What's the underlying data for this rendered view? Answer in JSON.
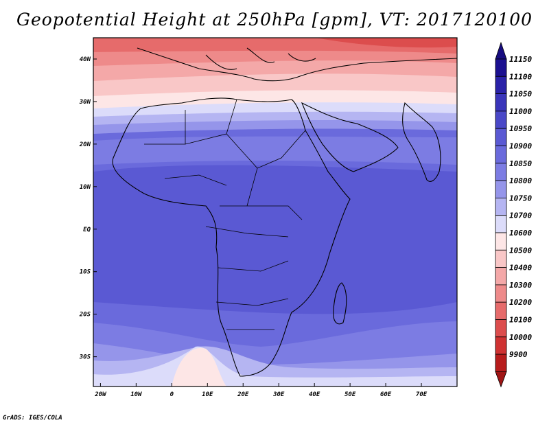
{
  "title": "Geopotential Height at 250hPa [gpm], VT: 2017120100",
  "credit": "GrADS: IGES/COLA",
  "map": {
    "lat_ticks": [
      "40N",
      "30N",
      "20N",
      "10N",
      "EQ",
      "10S",
      "20S",
      "30S"
    ],
    "lat_values": [
      40,
      30,
      20,
      10,
      0,
      -10,
      -20,
      -30
    ],
    "lon_ticks": [
      "20W",
      "10W",
      "0",
      "10E",
      "20E",
      "30E",
      "40E",
      "50E",
      "60E",
      "70E"
    ],
    "lon_values": [
      -20,
      -10,
      0,
      10,
      20,
      30,
      40,
      50,
      60,
      70
    ],
    "lon_range": [
      -22,
      80
    ],
    "lat_range": [
      -37,
      45
    ]
  },
  "colorbar": {
    "labels": [
      "11150",
      "11100",
      "11050",
      "11000",
      "10950",
      "10900",
      "10850",
      "10800",
      "10750",
      "10700",
      "10600",
      "10500",
      "10400",
      "10300",
      "10200",
      "10100",
      "10000",
      "9900"
    ],
    "colors": [
      "#1b1090",
      "#2a22a8",
      "#3a35ba",
      "#4a48c8",
      "#5a59d3",
      "#6a6adc",
      "#7c7ce3",
      "#9595ea",
      "#b5b5f2",
      "#dcdcfa",
      "#fde6e6",
      "#f9c7c7",
      "#f4a8a8",
      "#ee8a8a",
      "#e66b6b",
      "#dc4d4d",
      "#cf3232",
      "#b71c1c"
    ],
    "top_arrow_color": "#170c80",
    "bottom_arrow_color": "#a01515"
  },
  "chart_data": {
    "type": "heatmap",
    "title": "Geopotential Height at 250hPa [gpm], VT: 2017120100",
    "variable": "Geopotential Height at 250hPa",
    "units": "gpm",
    "valid_time": "2017120100",
    "lon_range": [
      -22,
      80
    ],
    "lat_range": [
      -37,
      45
    ],
    "levels": [
      9900,
      10000,
      10100,
      10200,
      10300,
      10400,
      10500,
      10600,
      10700,
      10750,
      10800,
      10850,
      10900,
      10950,
      11000,
      11050,
      11100,
      11150
    ],
    "field_by_latitude": [
      {
        "lat": 45,
        "value": 10250
      },
      {
        "lat": 40,
        "value": 10400
      },
      {
        "lat": 35,
        "value": 10550
      },
      {
        "lat": 30,
        "value": 10700
      },
      {
        "lat": 25,
        "value": 10800
      },
      {
        "lat": 20,
        "value": 10870
      },
      {
        "lat": 15,
        "value": 10920
      },
      {
        "lat": 10,
        "value": 10950
      },
      {
        "lat": 0,
        "value": 10960
      },
      {
        "lat": -10,
        "value": 10960
      },
      {
        "lat": -20,
        "value": 10920
      },
      {
        "lat": -25,
        "value": 10870
      },
      {
        "lat": -30,
        "value": 10780
      },
      {
        "lat": -35,
        "value": 10720
      }
    ]
  }
}
